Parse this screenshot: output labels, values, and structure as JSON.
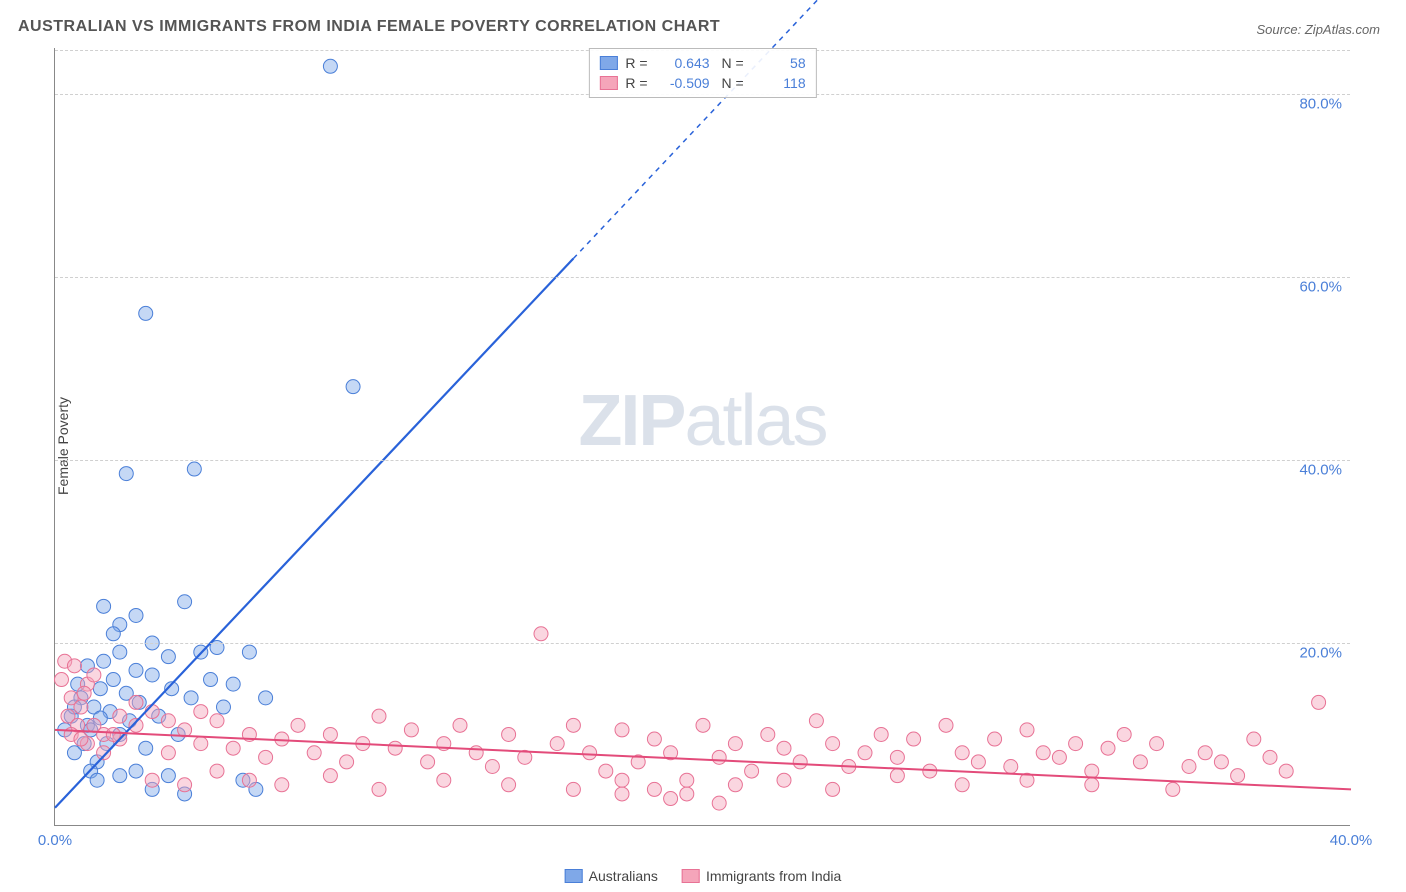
{
  "title": "AUSTRALIAN VS IMMIGRANTS FROM INDIA FEMALE POVERTY CORRELATION CHART",
  "source": "Source: ZipAtlas.com",
  "y_axis_label": "Female Poverty",
  "watermark_bold": "ZIP",
  "watermark_light": "atlas",
  "chart": {
    "type": "scatter",
    "x_domain": [
      0,
      40
    ],
    "y_domain": [
      0,
      85
    ],
    "x_ticks": [
      0,
      40
    ],
    "x_tick_labels": [
      "0.0%",
      "40.0%"
    ],
    "y_ticks": [
      20,
      40,
      60,
      80
    ],
    "y_tick_labels": [
      "20.0%",
      "40.0%",
      "60.0%",
      "80.0%"
    ],
    "background_color": "#ffffff",
    "grid_color": "#d0d0d0",
    "axis_color": "#888888",
    "marker_radius": 7,
    "marker_opacity": 0.45,
    "series": [
      {
        "name": "Australians",
        "fill_color": "#7fa8e8",
        "stroke_color": "#4a7fd8",
        "r_value": "0.643",
        "n_value": "58",
        "trend": {
          "x1": 0,
          "y1": 2,
          "x2": 16,
          "y2": 62,
          "stroke_width": 2.2,
          "color": "#2962d9",
          "dash_extend_to_x": 24,
          "dash_extend_to_y": 92
        },
        "points": [
          [
            0.3,
            10.5
          ],
          [
            0.5,
            12
          ],
          [
            0.6,
            8
          ],
          [
            0.8,
            14
          ],
          [
            1.0,
            11
          ],
          [
            1.0,
            17.5
          ],
          [
            1.2,
            13
          ],
          [
            1.3,
            7
          ],
          [
            1.4,
            15
          ],
          [
            1.5,
            18
          ],
          [
            1.6,
            9
          ],
          [
            1.7,
            12.5
          ],
          [
            1.8,
            16
          ],
          [
            2.0,
            10
          ],
          [
            2.0,
            19
          ],
          [
            2.2,
            14.5
          ],
          [
            2.3,
            11.5
          ],
          [
            2.5,
            17
          ],
          [
            2.6,
            13.5
          ],
          [
            2.8,
            8.5
          ],
          [
            3.0,
            16.5
          ],
          [
            3.0,
            20
          ],
          [
            3.2,
            12
          ],
          [
            3.5,
            18.5
          ],
          [
            3.6,
            15
          ],
          [
            3.8,
            10
          ],
          [
            4.0,
            24.5
          ],
          [
            4.2,
            14
          ],
          [
            4.5,
            19
          ],
          [
            4.8,
            16
          ],
          [
            5.0,
            19.5
          ],
          [
            5.2,
            13
          ],
          [
            5.5,
            15.5
          ],
          [
            5.8,
            5
          ],
          [
            6.0,
            19
          ],
          [
            2.0,
            5.5
          ],
          [
            2.5,
            6
          ],
          [
            3.0,
            4
          ],
          [
            3.5,
            5.5
          ],
          [
            4.0,
            3.5
          ],
          [
            1.1,
            6
          ],
          [
            1.3,
            5
          ],
          [
            6.2,
            4
          ],
          [
            6.5,
            14
          ],
          [
            4.3,
            39
          ],
          [
            2.2,
            38.5
          ],
          [
            2.8,
            56
          ],
          [
            8.5,
            83
          ],
          [
            9.2,
            48
          ],
          [
            1.5,
            24
          ],
          [
            2.0,
            22
          ],
          [
            2.5,
            23
          ],
          [
            1.8,
            21
          ],
          [
            0.9,
            9
          ],
          [
            1.1,
            10.5
          ],
          [
            1.4,
            11.8
          ],
          [
            0.6,
            13
          ],
          [
            0.7,
            15.5
          ]
        ]
      },
      {
        "name": "Immigrants from India",
        "fill_color": "#f5a5ba",
        "stroke_color": "#e87295",
        "r_value": "-0.509",
        "n_value": "118",
        "trend": {
          "x1": 0,
          "y1": 10.5,
          "x2": 40,
          "y2": 4,
          "stroke_width": 2,
          "color": "#e34b7a"
        },
        "points": [
          [
            0.2,
            16
          ],
          [
            0.3,
            18
          ],
          [
            0.5,
            14
          ],
          [
            0.6,
            17.5
          ],
          [
            0.8,
            13
          ],
          [
            1.0,
            15.5
          ],
          [
            0.4,
            12
          ],
          [
            0.7,
            11
          ],
          [
            1.2,
            16.5
          ],
          [
            0.9,
            14.5
          ],
          [
            1.5,
            10
          ],
          [
            2.0,
            9.5
          ],
          [
            2.5,
            11
          ],
          [
            3.0,
            12.5
          ],
          [
            3.5,
            8
          ],
          [
            4.0,
            10.5
          ],
          [
            4.5,
            9
          ],
          [
            5.0,
            11.5
          ],
          [
            5.5,
            8.5
          ],
          [
            6.0,
            10
          ],
          [
            6.5,
            7.5
          ],
          [
            7.0,
            9.5
          ],
          [
            7.5,
            11
          ],
          [
            8.0,
            8
          ],
          [
            8.5,
            10
          ],
          [
            9.0,
            7
          ],
          [
            9.5,
            9
          ],
          [
            10.0,
            12
          ],
          [
            10.5,
            8.5
          ],
          [
            11.0,
            10.5
          ],
          [
            11.5,
            7
          ],
          [
            12.0,
            9
          ],
          [
            12.5,
            11
          ],
          [
            13.0,
            8
          ],
          [
            13.5,
            6.5
          ],
          [
            14.0,
            10
          ],
          [
            14.5,
            7.5
          ],
          [
            15.0,
            21
          ],
          [
            15.5,
            9
          ],
          [
            16.0,
            11
          ],
          [
            16.5,
            8
          ],
          [
            17.0,
            6
          ],
          [
            17.5,
            10.5
          ],
          [
            18.0,
            7
          ],
          [
            18.5,
            9.5
          ],
          [
            19.0,
            8
          ],
          [
            19.5,
            3.5
          ],
          [
            20.0,
            11
          ],
          [
            20.5,
            7.5
          ],
          [
            21.0,
            9
          ],
          [
            21.5,
            6
          ],
          [
            22.0,
            10
          ],
          [
            22.5,
            8.5
          ],
          [
            23.0,
            7
          ],
          [
            23.5,
            11.5
          ],
          [
            24.0,
            9
          ],
          [
            24.5,
            6.5
          ],
          [
            25.0,
            8
          ],
          [
            25.5,
            10
          ],
          [
            26.0,
            7.5
          ],
          [
            26.5,
            9.5
          ],
          [
            27.0,
            6
          ],
          [
            27.5,
            11
          ],
          [
            28.0,
            8
          ],
          [
            28.5,
            7
          ],
          [
            29.0,
            9.5
          ],
          [
            29.5,
            6.5
          ],
          [
            30.0,
            10.5
          ],
          [
            30.5,
            8
          ],
          [
            31.0,
            7.5
          ],
          [
            31.5,
            9
          ],
          [
            32.0,
            6
          ],
          [
            32.5,
            8.5
          ],
          [
            33.0,
            10
          ],
          [
            33.5,
            7
          ],
          [
            34.0,
            9
          ],
          [
            34.5,
            4
          ],
          [
            35.0,
            6.5
          ],
          [
            35.5,
            8
          ],
          [
            36.0,
            7
          ],
          [
            36.5,
            5.5
          ],
          [
            37.0,
            9.5
          ],
          [
            37.5,
            7.5
          ],
          [
            38.0,
            6
          ],
          [
            39.0,
            13.5
          ],
          [
            18.5,
            4
          ],
          [
            19.0,
            3
          ],
          [
            20.5,
            2.5
          ],
          [
            17.5,
            3.5
          ],
          [
            16.0,
            4
          ],
          [
            6.0,
            5
          ],
          [
            7.0,
            4.5
          ],
          [
            8.5,
            5.5
          ],
          [
            10.0,
            4
          ],
          [
            12.0,
            5
          ],
          [
            14.0,
            4.5
          ],
          [
            3.0,
            5
          ],
          [
            4.0,
            4.5
          ],
          [
            5.0,
            6
          ],
          [
            2.0,
            12
          ],
          [
            2.5,
            13.5
          ],
          [
            3.5,
            11.5
          ],
          [
            4.5,
            12.5
          ],
          [
            1.0,
            9
          ],
          [
            1.5,
            8
          ],
          [
            0.5,
            10
          ],
          [
            0.8,
            9.5
          ],
          [
            1.2,
            11
          ],
          [
            1.8,
            10
          ],
          [
            17.5,
            5
          ],
          [
            19.5,
            5
          ],
          [
            21.0,
            4.5
          ],
          [
            22.5,
            5
          ],
          [
            24.0,
            4
          ],
          [
            26.0,
            5.5
          ],
          [
            28.0,
            4.5
          ],
          [
            30.0,
            5
          ],
          [
            32.0,
            4.5
          ]
        ]
      }
    ]
  },
  "legend_bottom": [
    {
      "label": "Australians",
      "fill": "#7fa8e8",
      "stroke": "#4a7fd8"
    },
    {
      "label": "Immigrants from India",
      "fill": "#f5a5ba",
      "stroke": "#e87295"
    }
  ]
}
